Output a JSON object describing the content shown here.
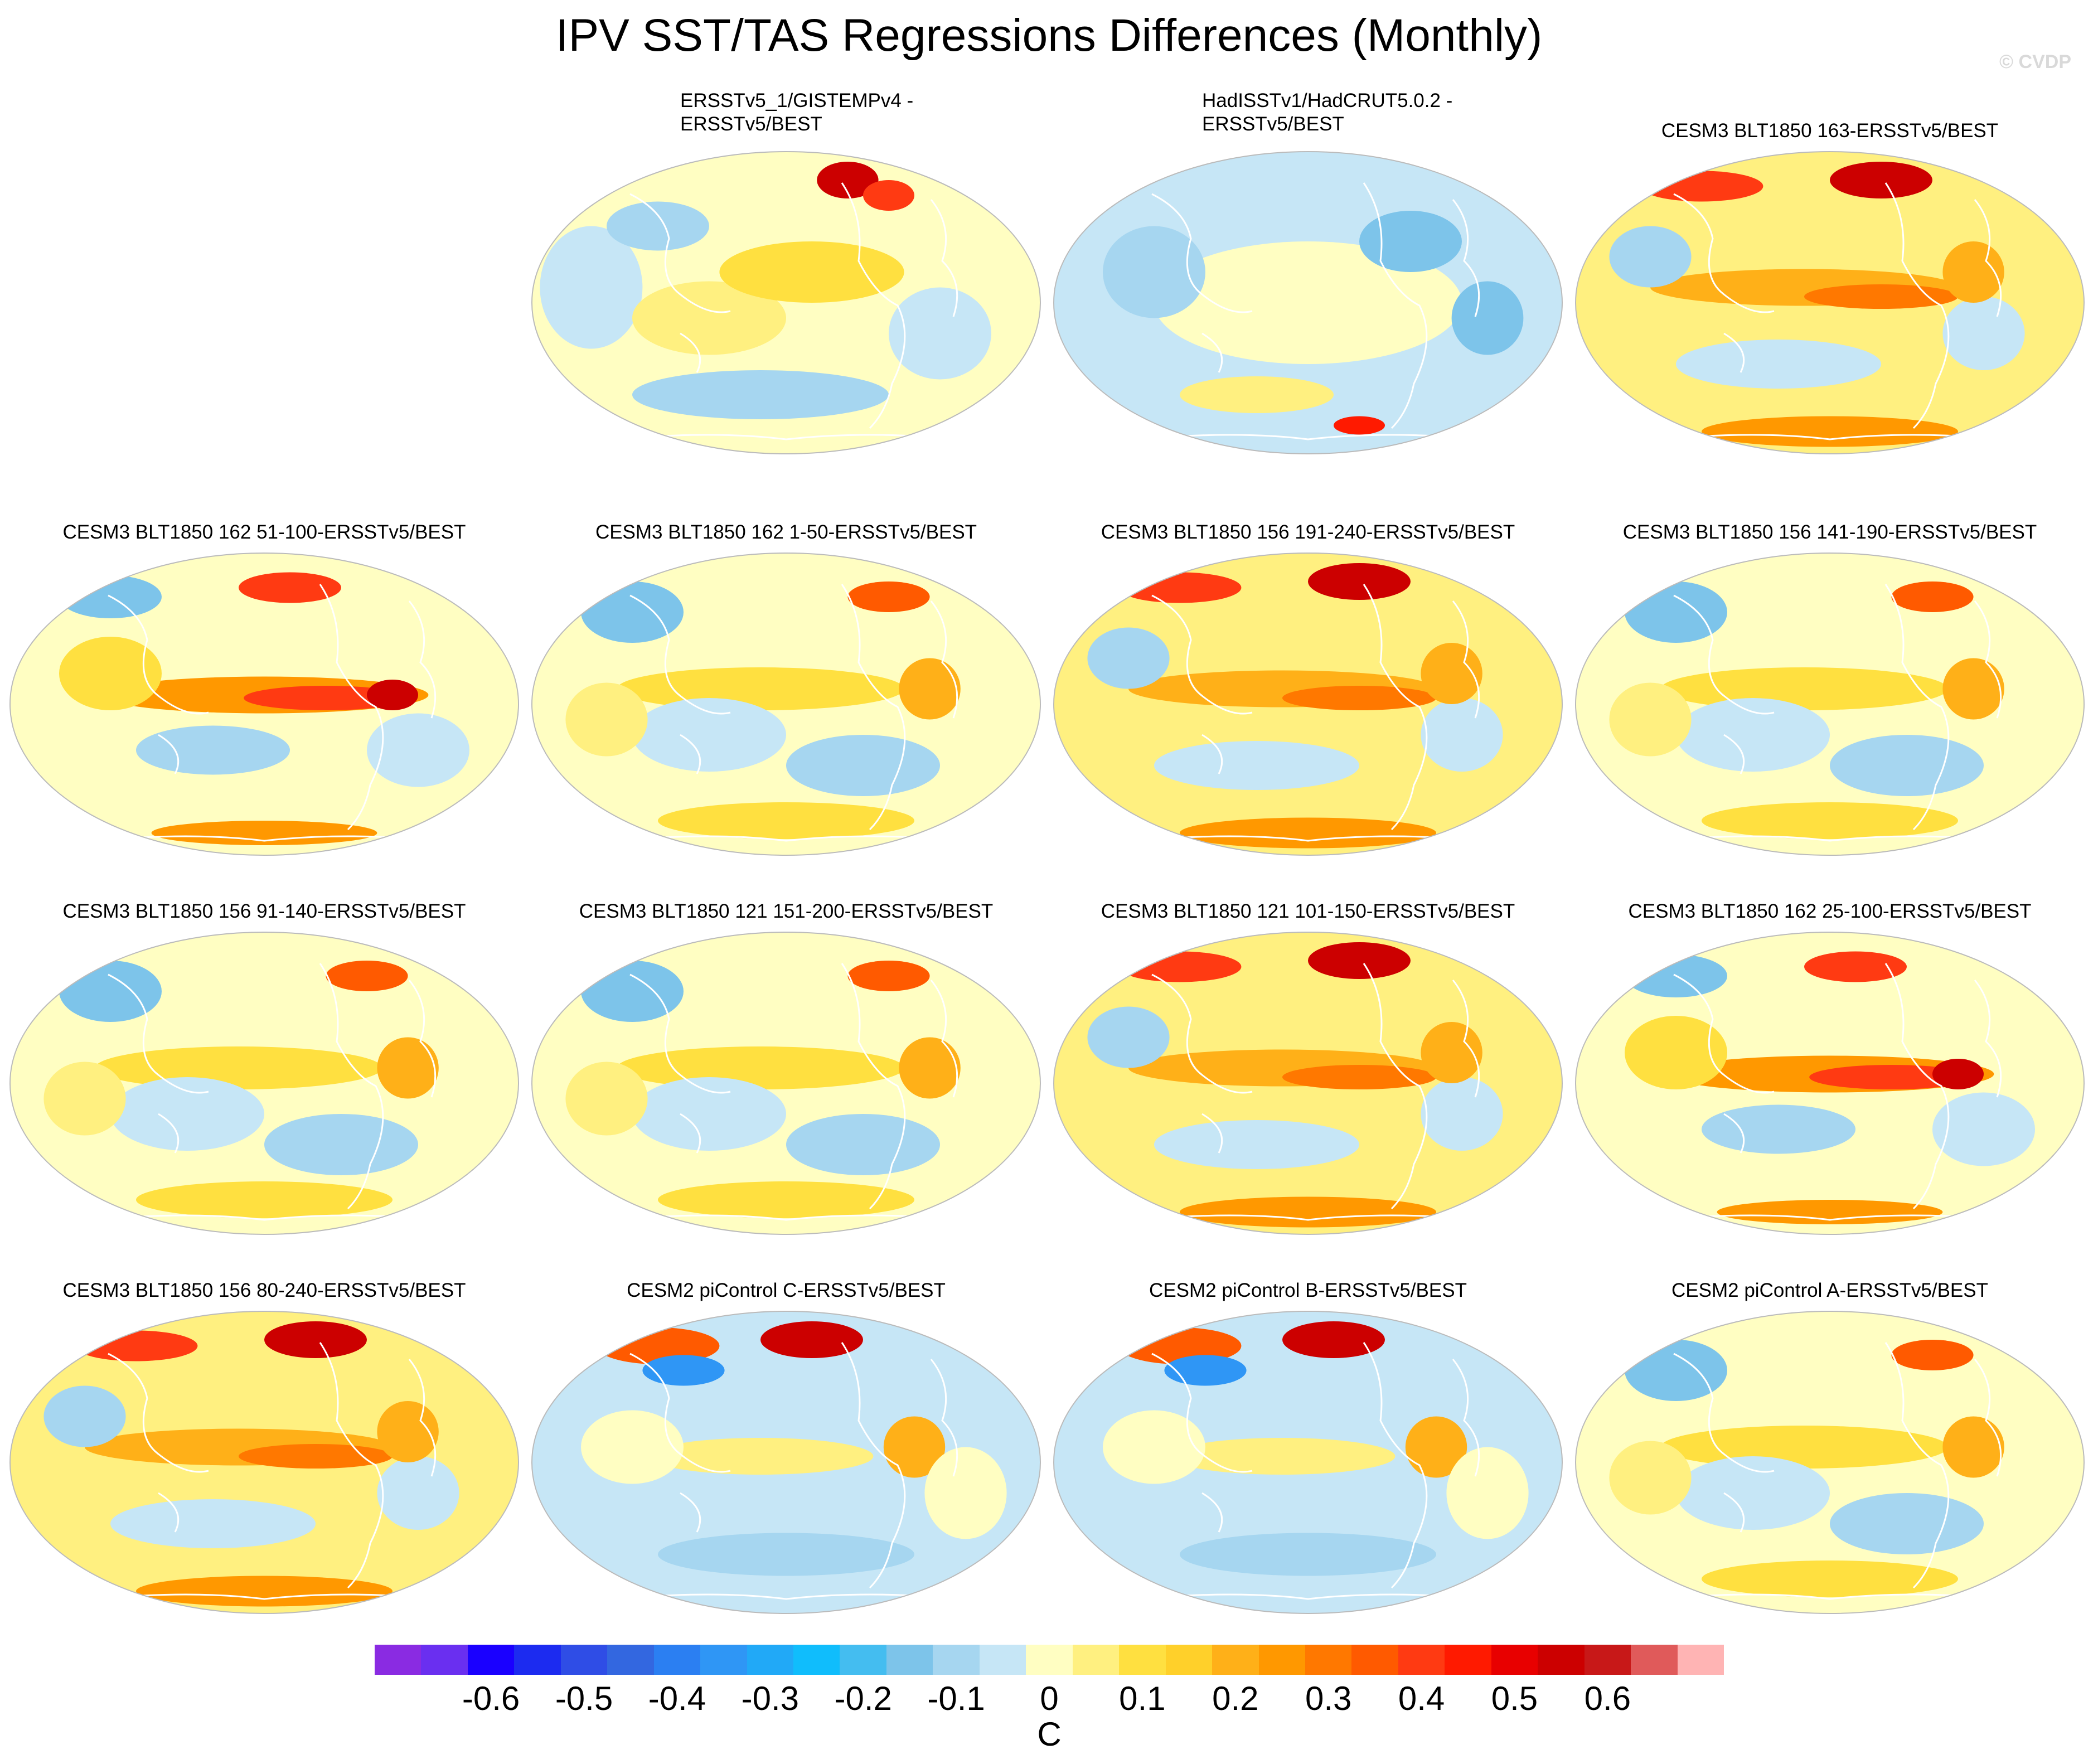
{
  "title": "IPV SST/TAS Regressions Differences (Monthly)",
  "watermark": "© CVDP",
  "panels": [
    {
      "title": "ERSSTv5_1/GISTEMPv4 -\nERSSTv5/BEST",
      "row": 0,
      "col": 1,
      "pattern": "obs1"
    },
    {
      "title": "HadISSTv1/HadCRUT5.0.2 -\nERSSTv5/BEST",
      "row": 0,
      "col": 2,
      "pattern": "obs2"
    },
    {
      "title": "CESM3 BLT1850 163-ERSSTv5/BEST",
      "row": 0,
      "col": 3,
      "pattern": "model"
    },
    {
      "title": "CESM3 BLT1850 162 51-100-ERSSTv5/BEST",
      "row": 1,
      "col": 0,
      "pattern": "strong"
    },
    {
      "title": "CESM3 BLT1850 162 1-50-ERSSTv5/BEST",
      "row": 1,
      "col": 1,
      "pattern": "weak"
    },
    {
      "title": "CESM3 BLT1850 156 191-240-ERSSTv5/BEST",
      "row": 1,
      "col": 2,
      "pattern": "model"
    },
    {
      "title": "CESM3 BLT1850 156 141-190-ERSSTv5/BEST",
      "row": 1,
      "col": 3,
      "pattern": "weak"
    },
    {
      "title": "CESM3 BLT1850 156 91-140-ERSSTv5/BEST",
      "row": 2,
      "col": 0,
      "pattern": "weak"
    },
    {
      "title": "CESM3 BLT1850 121 151-200-ERSSTv5/BEST",
      "row": 2,
      "col": 1,
      "pattern": "weak"
    },
    {
      "title": "CESM3 BLT1850 121 101-150-ERSSTv5/BEST",
      "row": 2,
      "col": 2,
      "pattern": "model"
    },
    {
      "title": "CESM3 BLT1850 162 25-100-ERSSTv5/BEST",
      "row": 2,
      "col": 3,
      "pattern": "strong"
    },
    {
      "title": "CESM3 BLT1850 156 80-240-ERSSTv5/BEST",
      "row": 3,
      "col": 0,
      "pattern": "model"
    },
    {
      "title": "CESM2 piControl C-ERSSTv5/BEST",
      "row": 3,
      "col": 1,
      "pattern": "cold"
    },
    {
      "title": "CESM2 piControl B-ERSSTv5/BEST",
      "row": 3,
      "col": 2,
      "pattern": "cold"
    },
    {
      "title": "CESM2 piControl A-ERSSTv5/BEST",
      "row": 3,
      "col": 3,
      "pattern": "weak"
    }
  ],
  "colorbar": {
    "units": "C",
    "colors": [
      "#8a2be2",
      "#6a2ff0",
      "#1a00ff",
      "#1c2bf0",
      "#2f4de6",
      "#3367e0",
      "#2b7ff2",
      "#2f96f5",
      "#21a9f7",
      "#10bdfc",
      "#44bdf0",
      "#7dc4ea",
      "#a6d6f0",
      "#c6e6f6",
      "#fffec2",
      "#fff080",
      "#ffe040",
      "#ffd02a",
      "#ffb018",
      "#ff9800",
      "#ff7800",
      "#ff5a00",
      "#ff3a12",
      "#ff1a00",
      "#e80000",
      "#cc0000",
      "#c81818",
      "#e05a5a",
      "#ffb4b4"
    ],
    "labels": [
      "-0.6",
      "-0.5",
      "-0.4",
      "-0.3",
      "-0.2",
      "-0.1",
      "0",
      "0.1",
      "0.2",
      "0.3",
      "0.4",
      "0.5",
      "0.6"
    ]
  }
}
